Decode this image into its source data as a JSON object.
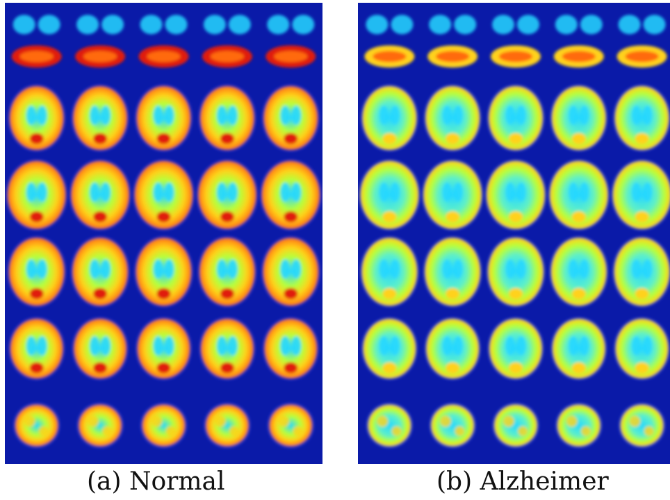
{
  "figure": {
    "panels": [
      {
        "id": "normal",
        "caption": "(a) Normal"
      },
      {
        "id": "alzheimer",
        "caption": "(b) Alzheimer"
      }
    ],
    "grid": {
      "rows": 6,
      "cols": 5
    },
    "colors": {
      "background": "#0a1aa8",
      "low": "#1a3cff",
      "mid": "#27d7ff",
      "mid_high": "#b8ff3a",
      "high": "#ffd21a",
      "peak": "#e01a0a"
    }
  }
}
